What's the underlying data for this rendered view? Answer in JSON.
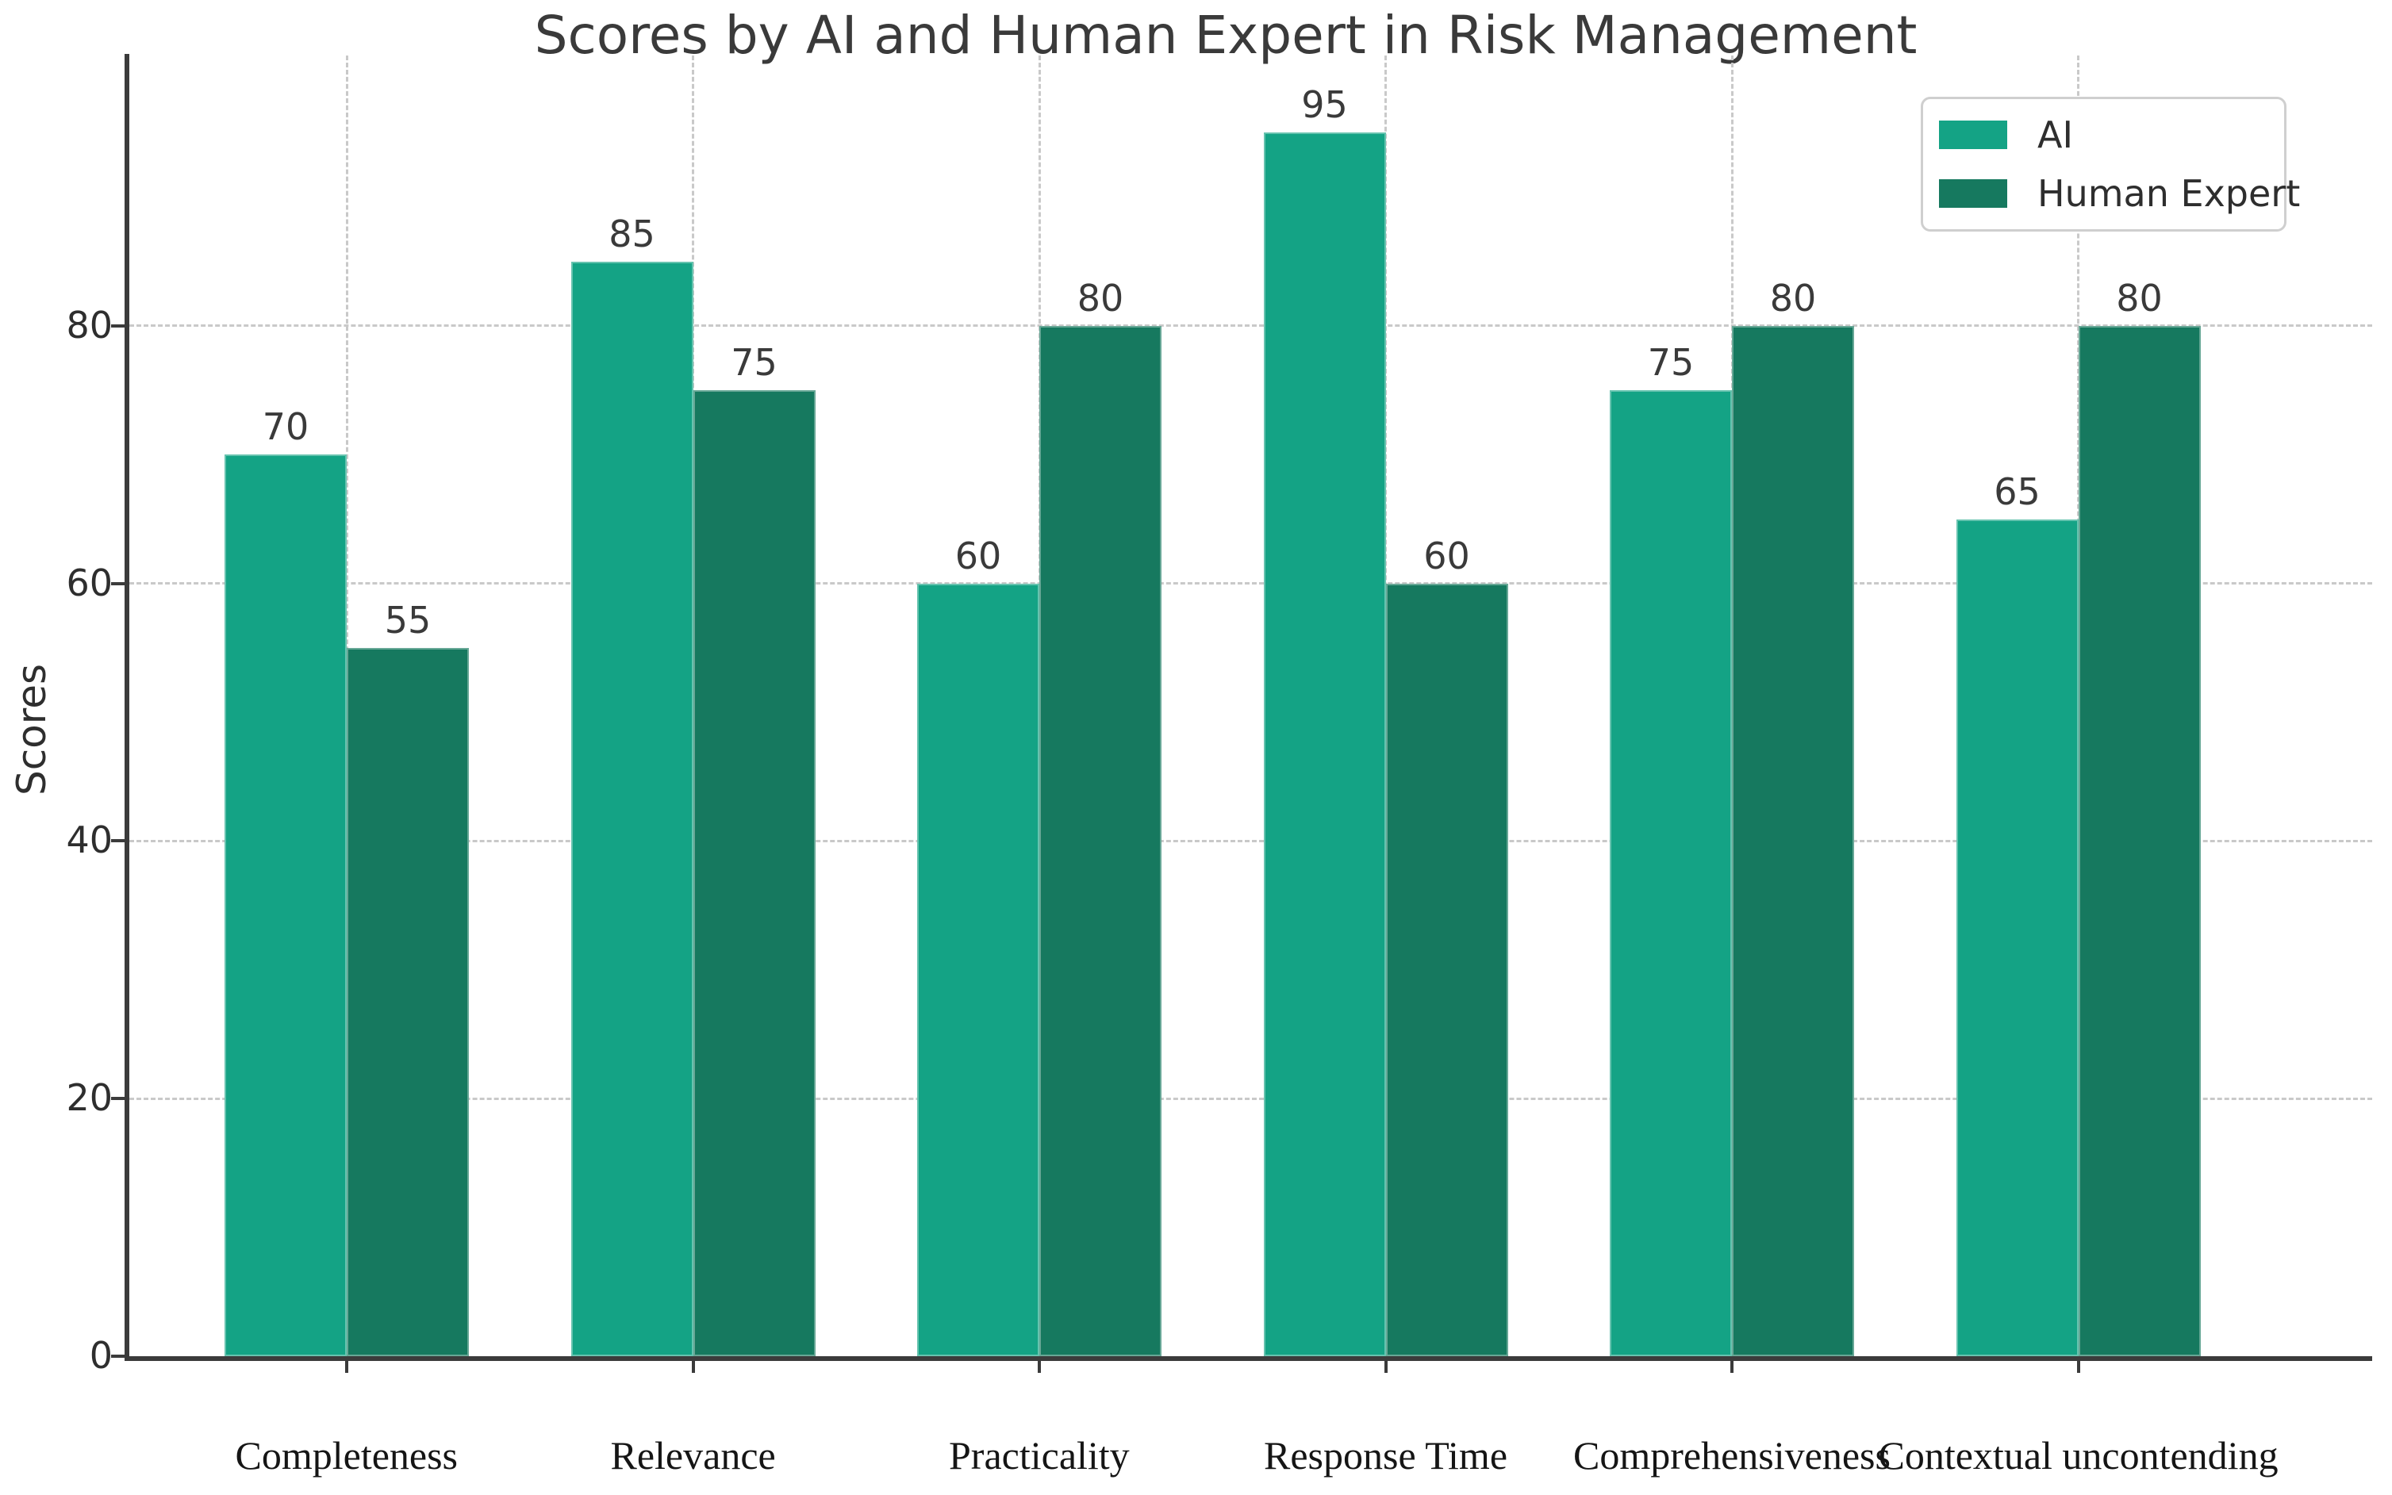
{
  "chart_data": {
    "type": "bar",
    "title": "Scores by AI and Human Expert in Risk Management",
    "ylabel": "Scores",
    "xlabel": "",
    "categories": [
      "Completeness",
      "Relevance",
      "Practicality",
      "Response Time",
      "Comprehensiveness",
      "Contextual uncontending"
    ],
    "series": [
      {
        "name": "AI",
        "color": "#14a385",
        "values": [
          70,
          85,
          60,
          95,
          75,
          65
        ]
      },
      {
        "name": "Human Expert",
        "color": "#16795f",
        "values": [
          55,
          75,
          80,
          60,
          80,
          80
        ]
      }
    ],
    "yticks": [
      0,
      20,
      40,
      60,
      80
    ],
    "ylim": [
      0,
      101
    ],
    "grid": "dashed-horizontal-and-vertical",
    "legend_position": "upper right",
    "bar_value_labels": true,
    "style": {
      "background": "#ffffff",
      "grid_color": "#c9c9c9",
      "spine_color": "#3b3b3b",
      "text_color": "#2e2e2e",
      "category_label_color": "#151515"
    }
  }
}
